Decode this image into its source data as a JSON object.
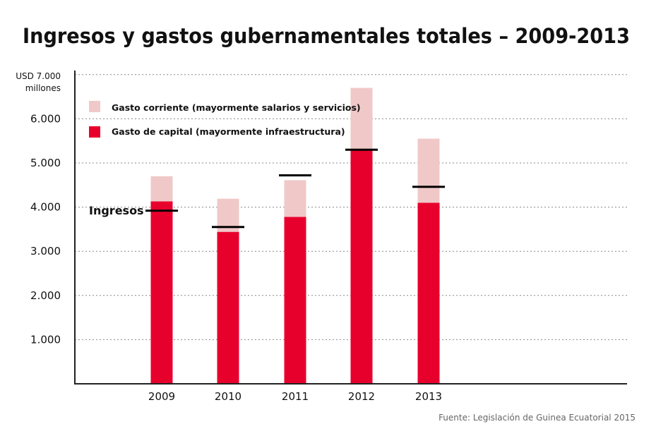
{
  "chart_data": {
    "type": "bar",
    "stacked": true,
    "title": "Ingresos y gastos gubernamentales totales – 2009-2013",
    "ylabel_line1": "USD 7.000",
    "ylabel_line2": "millones",
    "ylim": [
      0,
      7000
    ],
    "yticks": [
      1000,
      2000,
      3000,
      4000,
      5000,
      6000
    ],
    "ytick_labels": [
      "1.000",
      "2.000",
      "3.000",
      "4.000",
      "5.000",
      "6.000"
    ],
    "grid": true,
    "legend_position": "top-left",
    "categories": [
      "2009",
      "2010",
      "2011",
      "2012",
      "2013"
    ],
    "series": [
      {
        "name": "Gasto de capital (mayormente infraestructura)",
        "color": "#e8002d",
        "values": [
          4130,
          3440,
          3780,
          5310,
          4100
        ]
      },
      {
        "name": "Gasto corriente (mayormente salarios y servicios)",
        "color": "#f0c8c8",
        "values": [
          570,
          750,
          830,
          1390,
          1450
        ]
      }
    ],
    "markers": {
      "name": "Ingresos",
      "color": "#000000",
      "values": [
        3920,
        3550,
        4720,
        5300,
        4460
      ]
    },
    "source": "Fuente: Legislación de Guinea Ecuatorial 2015"
  }
}
